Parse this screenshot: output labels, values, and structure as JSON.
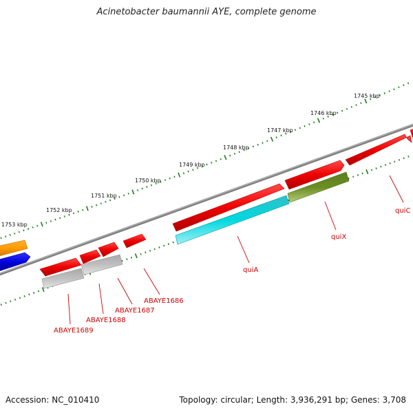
{
  "title": "Acinetobacter baumannii AYE, complete genome",
  "footer": {
    "accession": "Accession: NC_010410",
    "summary": "Topology: circular; Length: 3,936,291 bp; Genes: 3,708"
  },
  "colors": {
    "backbone": "#808080",
    "tick": "#1a7a1a",
    "gene_label": "#cc0000",
    "cds_red": "#ee0000",
    "cds_cyan": "#00c8d2",
    "cds_olive": "#6b8e23",
    "cds_grey": "#b8b8b8",
    "cds_orange": "#ff9900",
    "cds_blue": "#0000dd"
  },
  "scale_labels": [
    "1745 kbp",
    "1746 kbp",
    "1747 kbp",
    "1748 kbp",
    "1749 kbp",
    "1750 kbp",
    "1751 kbp",
    "1752 kbp",
    "1753 kbp"
  ],
  "gene_labels": [
    "quiC",
    "quiX",
    "quiA",
    "ABAYE1686",
    "ABAYE1687",
    "ABAYE1688",
    "ABAYE1689"
  ]
}
